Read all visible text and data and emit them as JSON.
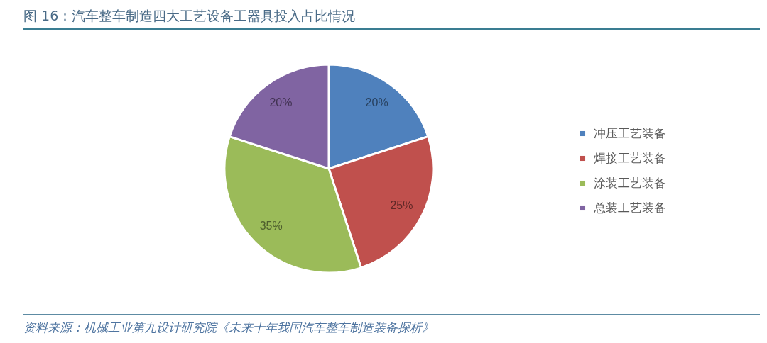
{
  "chart_data": {
    "type": "pie",
    "title": "图 16：汽车整车制造四大工艺设备工器具投入占比情况",
    "categories": [
      "冲压工艺装备",
      "焊接工艺装备",
      "涂装工艺装备",
      "总装工艺装备"
    ],
    "values": [
      20,
      25,
      35,
      20
    ],
    "value_labels": [
      "20%",
      "25%",
      "35%",
      "20%"
    ],
    "colors": [
      "#4f81bd",
      "#c0504d",
      "#9bbb59",
      "#8064a2"
    ],
    "legend": "right",
    "annotations": [
      "资料来源：机械工业第九设计研究院《未来十年我国汽车整车制造装备探析》"
    ]
  }
}
